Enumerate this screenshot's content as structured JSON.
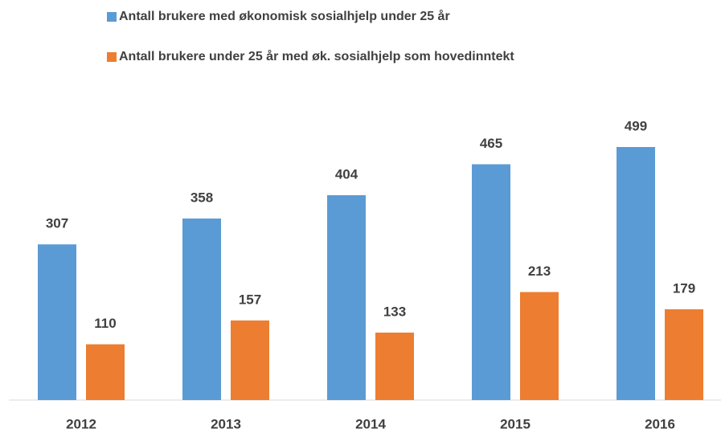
{
  "chart_data": {
    "type": "bar",
    "categories": [
      "2012",
      "2013",
      "2014",
      "2015",
      "2016"
    ],
    "series": [
      {
        "name": "Antall brukere med økonomisk sosialhjelp under 25 år",
        "color": "#5b9bd5",
        "values": [
          307,
          358,
          404,
          465,
          499
        ]
      },
      {
        "name": "Antall brukere under 25 år med øk. sosialhjelp som hovedinntekt",
        "color": "#ed7d31",
        "values": [
          110,
          157,
          133,
          213,
          179
        ]
      }
    ],
    "legend": "top"
  }
}
